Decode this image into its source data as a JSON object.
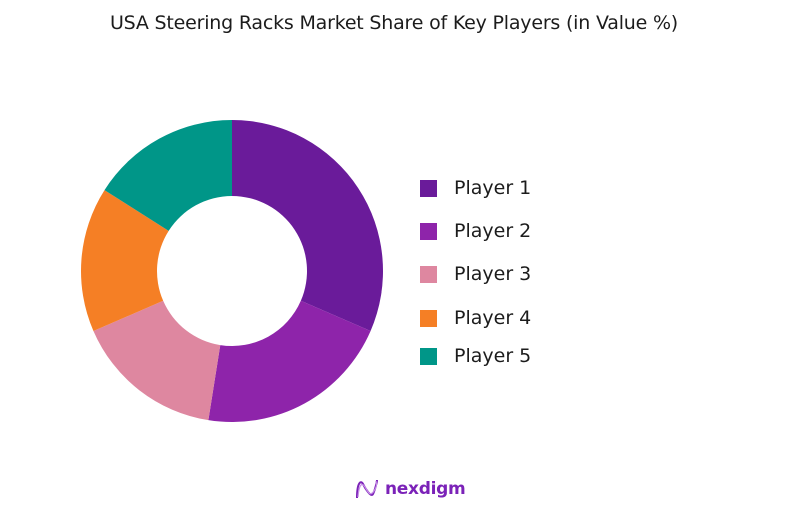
{
  "title": "USA Steering Racks Market Share of Key Players (in Value %)",
  "chart_data": {
    "type": "pie",
    "subtype": "donut",
    "title": "USA Steering Racks Market Share of Key Players (in Value %)",
    "categories": [
      "Player 1",
      "Player 2",
      "Player 3",
      "Player 4",
      "Player 5"
    ],
    "values": [
      31.5,
      21,
      16,
      15.5,
      16
    ],
    "colors": [
      "#6A1B9A",
      "#8E24AA",
      "#DE87A0",
      "#F57F25",
      "#009688"
    ],
    "start_angle_deg": 0,
    "direction": "clockwise",
    "legend_position": "right",
    "center": [
      232,
      271
    ],
    "outer_radius": 151,
    "inner_radius": 75
  },
  "legend": {
    "items": [
      {
        "label": "Player 1",
        "color": "#6A1B9A"
      },
      {
        "label": "Player 2",
        "color": "#8E24AA"
      },
      {
        "label": "Player 3",
        "color": "#DE87A0"
      },
      {
        "label": "Player 4",
        "color": "#F57F25"
      },
      {
        "label": "Player 5",
        "color": "#009688"
      }
    ]
  },
  "footer": {
    "brand": "nexdigm",
    "logo_icon": "nexdigm-wave-logo-icon"
  }
}
